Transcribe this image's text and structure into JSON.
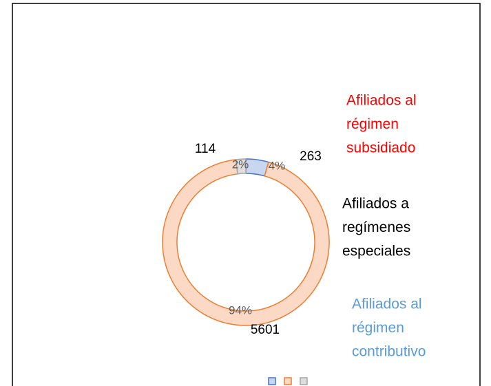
{
  "chart_data": {
    "type": "donut",
    "categories": [
      null,
      null,
      null
    ],
    "values": [
      263,
      5601,
      114
    ],
    "percent_labels": [
      "4%",
      "94%",
      "2%"
    ],
    "colors": [
      "#4472c4",
      "#ed7d31",
      "#a5a5a5"
    ],
    "fills": [
      "#c9d6f0",
      "#fcd9c4",
      "#dedede"
    ],
    "annotations": [
      {
        "lines": [
          "Afiliados al",
          "régimen",
          "subsidiado"
        ],
        "color": "#ff0000"
      },
      {
        "lines": [
          "Afiliados a",
          "regímenes",
          "especiales"
        ],
        "color": "#000000"
      },
      {
        "lines": [
          "Afiliados al",
          "régimen",
          "contributivo"
        ],
        "color": "#5b9bd5"
      }
    ]
  }
}
